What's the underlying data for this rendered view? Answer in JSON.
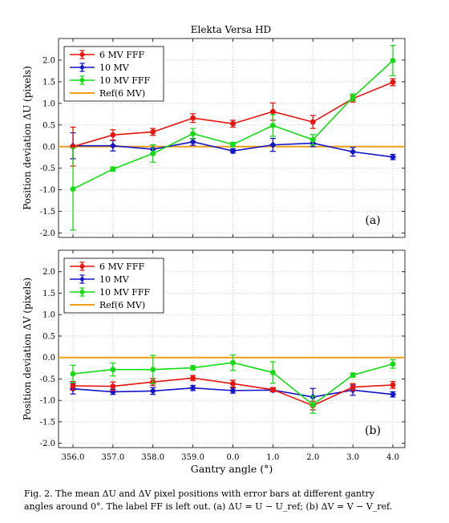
{
  "figure_title": "Elekta Versa HD",
  "caption": {
    "line1": "Fig. 2. The mean ΔU and ΔV pixel positions with error bars at different gantry",
    "line2": "angles around 0°. The label FF is left out. (a) ΔU = U − U_ref; (b) ΔV = V − V_ref."
  },
  "chart_data": [
    {
      "type": "line",
      "panel_label": "(a)",
      "ylabel": "Position deviation ΔU (pixels)",
      "xlabel": "",
      "categories": [
        "356.0",
        "357.0",
        "358.0",
        "359.0",
        "0.0",
        "1.0",
        "2.0",
        "3.0",
        "4.0"
      ],
      "ylim": [
        -2.1,
        2.5
      ],
      "yticks": [
        -2.0,
        -1.5,
        -1.0,
        -0.5,
        0.0,
        0.5,
        1.0,
        1.5,
        2.0
      ],
      "ytick_labels": [
        "-2.0",
        "-1.5",
        "-1.0",
        "-0.5",
        "0.0",
        "0.5",
        "1.0",
        "1.5",
        "2.0"
      ],
      "grid": true,
      "legend_position": "top-left",
      "series": [
        {
          "name": "6 MV FFF",
          "color": "#e8140f",
          "marker": "circle",
          "values": [
            0.0,
            0.27,
            0.34,
            0.66,
            0.53,
            0.81,
            0.57,
            1.11,
            1.49
          ],
          "errors": [
            0.45,
            0.12,
            0.08,
            0.1,
            0.08,
            0.2,
            0.15,
            0.08,
            0.08
          ]
        },
        {
          "name": "10 MV",
          "color": "#1414c8",
          "marker": "diamond",
          "values": [
            0.02,
            0.02,
            -0.06,
            0.11,
            -0.1,
            0.04,
            0.08,
            -0.12,
            -0.24
          ],
          "errors": [
            0.3,
            0.12,
            0.1,
            0.08,
            0.05,
            0.15,
            0.08,
            0.1,
            0.06
          ]
        },
        {
          "name": "10 MV FFF",
          "color": "#14dc14",
          "marker": "circle",
          "values": [
            -0.98,
            -0.52,
            -0.16,
            0.3,
            0.05,
            0.49,
            0.16,
            1.14,
            1.99
          ],
          "errors": [
            0.95,
            0.05,
            0.2,
            0.12,
            0.05,
            0.25,
            0.12,
            0.08,
            0.35
          ]
        },
        {
          "name": "Ref(6 MV)",
          "color": "#f0a019",
          "marker": "none",
          "values": [
            0,
            0,
            0,
            0,
            0,
            0,
            0,
            0,
            0
          ]
        }
      ]
    },
    {
      "type": "line",
      "panel_label": "(b)",
      "ylabel": "Position deviation ΔV (pixels)",
      "xlabel": "Gantry angle (°)",
      "categories": [
        "356.0",
        "357.0",
        "358.0",
        "359.0",
        "0.0",
        "1.0",
        "2.0",
        "3.0",
        "4.0"
      ],
      "ylim": [
        -2.1,
        2.5
      ],
      "yticks": [
        -2.0,
        -1.5,
        -1.0,
        -0.5,
        0.0,
        0.5,
        1.0,
        1.5,
        2.0
      ],
      "ytick_labels": [
        "-2.0",
        "-1.5",
        "-1.0",
        "-0.5",
        "0.0",
        "0.5",
        "1.0",
        "1.5",
        "2.0"
      ],
      "grid": true,
      "legend_position": "top-left",
      "series": [
        {
          "name": "6 MV FFF",
          "color": "#e8140f",
          "marker": "circle",
          "values": [
            -0.66,
            -0.67,
            -0.57,
            -0.48,
            -0.61,
            -0.75,
            -1.12,
            -0.69,
            -0.64
          ],
          "errors": [
            0.1,
            0.1,
            0.08,
            0.06,
            0.08,
            0.05,
            0.1,
            0.08,
            0.08
          ]
        },
        {
          "name": "10 MV",
          "color": "#1414c8",
          "marker": "diamond",
          "values": [
            -0.73,
            -0.8,
            -0.78,
            -0.71,
            -0.77,
            -0.76,
            -0.92,
            -0.76,
            -0.86
          ],
          "errors": [
            0.12,
            0.06,
            0.08,
            0.06,
            0.06,
            0.04,
            0.2,
            0.12,
            0.06
          ]
        },
        {
          "name": "10 MV FFF",
          "color": "#14dc14",
          "marker": "circle",
          "values": [
            -0.38,
            -0.28,
            -0.28,
            -0.24,
            -0.12,
            -0.35,
            -1.1,
            -0.41,
            -0.15
          ],
          "errors": [
            0.2,
            0.15,
            0.33,
            0.05,
            0.18,
            0.25,
            0.2,
            0.05,
            0.1
          ]
        },
        {
          "name": "Ref(6 MV)",
          "color": "#f0a019",
          "marker": "none",
          "values": [
            0,
            0,
            0,
            0,
            0,
            0,
            0,
            0,
            0
          ]
        }
      ]
    }
  ]
}
